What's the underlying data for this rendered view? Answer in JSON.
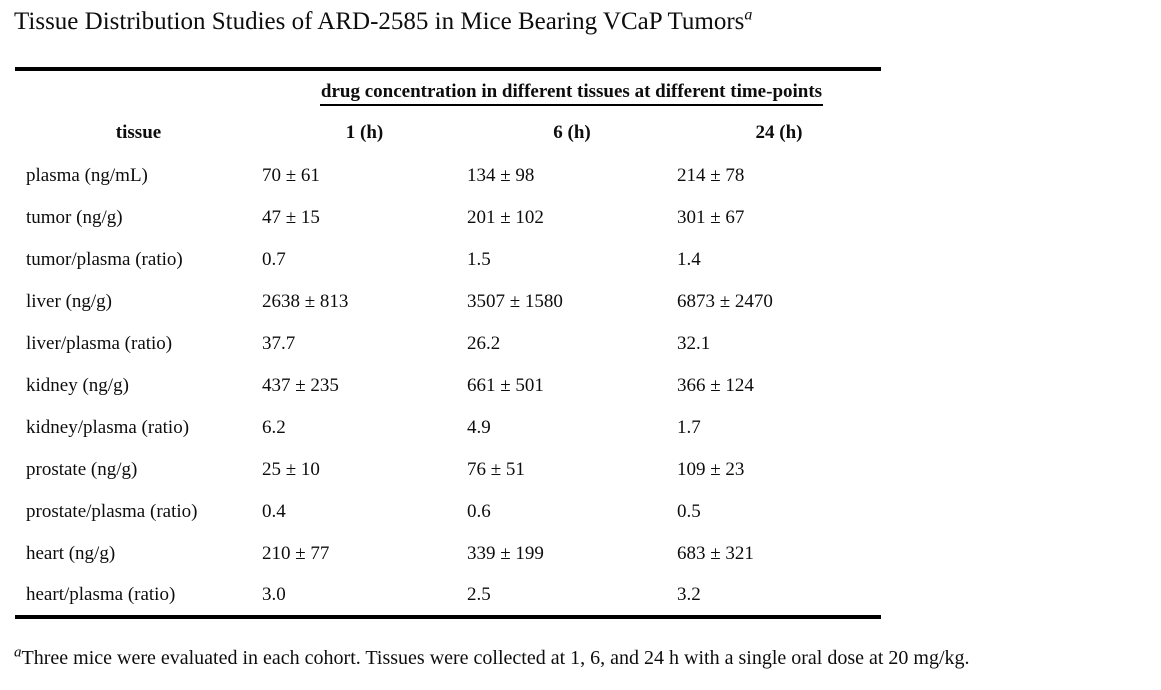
{
  "page": {
    "title": "Tissue Distribution Studies of ARD-2585 in Mice Bearing VCaP Tumors",
    "title_superscript": "a"
  },
  "table": {
    "span_header": "drug concentration in different tissues at different time-points",
    "columns": [
      "tissue",
      "1 (h)",
      "6 (h)",
      "24 (h)"
    ],
    "rows": [
      {
        "tissue": "plasma (ng/mL)",
        "values": [
          "70 ± 61",
          "134 ± 98",
          "214 ± 78"
        ]
      },
      {
        "tissue": "tumor (ng/g)",
        "values": [
          "47 ± 15",
          "201 ± 102",
          "301 ± 67"
        ]
      },
      {
        "tissue": "tumor/plasma (ratio)",
        "values": [
          "0.7",
          "1.5",
          "1.4"
        ]
      },
      {
        "tissue": "liver (ng/g)",
        "values": [
          "2638 ± 813",
          "3507 ± 1580",
          "6873 ± 2470"
        ]
      },
      {
        "tissue": "liver/plasma (ratio)",
        "values": [
          "37.7",
          "26.2",
          "32.1"
        ]
      },
      {
        "tissue": "kidney (ng/g)",
        "values": [
          "437 ± 235",
          "661 ± 501",
          "366 ± 124"
        ]
      },
      {
        "tissue": "kidney/plasma (ratio)",
        "values": [
          "6.2",
          "4.9",
          "1.7"
        ]
      },
      {
        "tissue": "prostate (ng/g)",
        "values": [
          "25 ± 10",
          "76 ± 51",
          "109 ± 23"
        ]
      },
      {
        "tissue": "prostate/plasma (ratio)",
        "values": [
          "0.4",
          "0.6",
          "0.5"
        ]
      },
      {
        "tissue": "heart (ng/g)",
        "values": [
          "210 ± 77",
          "339 ± 199",
          "683 ± 321"
        ]
      },
      {
        "tissue": "heart/plasma (ratio)",
        "values": [
          "3.0",
          "2.5",
          "3.2"
        ]
      }
    ]
  },
  "footnote": {
    "marker": "a",
    "text": "Three mice were evaluated in each cohort. Tissues were collected at 1, 6, and 24 h with a single oral dose at 20 mg/kg."
  },
  "chart_data": {
    "type": "table",
    "title": "Tissue Distribution Studies of ARD-2585 in Mice Bearing VCaP Tumors",
    "column_group_header": "drug concentration in different tissues at different time-points",
    "columns": [
      "tissue",
      "1 (h)",
      "6 (h)",
      "24 (h)"
    ],
    "rows": [
      [
        "plasma (ng/mL)",
        "70 ± 61",
        "134 ± 98",
        "214 ± 78"
      ],
      [
        "tumor (ng/g)",
        "47 ± 15",
        "201 ± 102",
        "301 ± 67"
      ],
      [
        "tumor/plasma (ratio)",
        "0.7",
        "1.5",
        "1.4"
      ],
      [
        "liver (ng/g)",
        "2638 ± 813",
        "3507 ± 1580",
        "6873 ± 2470"
      ],
      [
        "liver/plasma (ratio)",
        "37.7",
        "26.2",
        "32.1"
      ],
      [
        "kidney (ng/g)",
        "437 ± 235",
        "661 ± 501",
        "366 ± 124"
      ],
      [
        "kidney/plasma (ratio)",
        "6.2",
        "4.9",
        "1.7"
      ],
      [
        "prostate (ng/g)",
        "25 ± 10",
        "76 ± 51",
        "109 ± 23"
      ],
      [
        "prostate/plasma (ratio)",
        "0.4",
        "0.6",
        "0.5"
      ],
      [
        "heart (ng/g)",
        "210 ± 77",
        "339 ± 199",
        "683 ± 321"
      ],
      [
        "heart/plasma (ratio)",
        "3.0",
        "2.5",
        "3.2"
      ]
    ],
    "footnote": "aThree mice were evaluated in each cohort. Tissues were collected at 1, 6, and 24 h with a single oral dose at 20 mg/kg."
  }
}
